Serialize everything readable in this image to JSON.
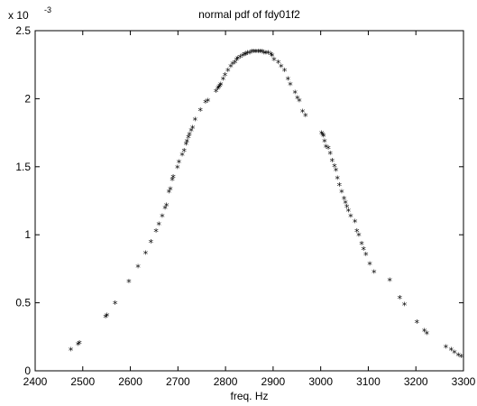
{
  "chart_data": {
    "type": "scatter",
    "title": "normal pdf of fdy01f2",
    "xlabel": "freq. Hz",
    "ylabel": "",
    "xlim": [
      2400,
      3300
    ],
    "ylim": [
      0,
      0.0025
    ],
    "x_ticks": [
      "2400",
      "2500",
      "2600",
      "2700",
      "2800",
      "2900",
      "3000",
      "3100",
      "3200",
      "3300"
    ],
    "y_ticks": [
      "0",
      "0.5",
      "1",
      "1.5",
      "2",
      "2.5"
    ],
    "y_exponent_base": "x 10",
    "y_exponent_power": "-3",
    "marker": "*",
    "grid": false,
    "series": [
      {
        "x": [
          2475,
          2490,
          2493,
          2548,
          2551,
          2568,
          2597,
          2616,
          2632,
          2643,
          2654,
          2660,
          2667,
          2673,
          2676,
          2681,
          2684,
          2688,
          2690,
          2699,
          2702,
          2709,
          2713,
          2717,
          2719,
          2722,
          2724,
          2728,
          2731,
          2736,
          2747,
          2758,
          2763,
          2780,
          2784,
          2786,
          2788,
          2790,
          2795,
          2799,
          2805,
          2811,
          2815,
          2820,
          2823,
          2826,
          2831,
          2836,
          2840,
          2843,
          2846,
          2851,
          2855,
          2860,
          2864,
          2869,
          2873,
          2877,
          2881,
          2885,
          2890,
          2895,
          2898,
          2902,
          2911,
          2917,
          2924,
          2931,
          2936,
          2946,
          2951,
          2955,
          2962,
          2968,
          3002,
          3004,
          3006,
          3008,
          3011,
          3016,
          3020,
          3024,
          3029,
          3032,
          3035,
          3039,
          3044,
          3049,
          3052,
          3055,
          3058,
          3063,
          3072,
          3076,
          3080,
          3086,
          3090,
          3095,
          3103,
          3112,
          3145,
          3166,
          3176,
          3202,
          3218,
          3223,
          3263,
          3274,
          3281,
          3289,
          3295
        ],
        "y": [
          0.00015,
          0.00019,
          0.0002,
          0.00039,
          0.0004,
          0.00049,
          0.00065,
          0.00076,
          0.00086,
          0.00094,
          0.00102,
          0.00107,
          0.00113,
          0.00119,
          0.00121,
          0.00131,
          0.00133,
          0.0014,
          0.00142,
          0.00149,
          0.00153,
          0.00158,
          0.00161,
          0.00166,
          0.00168,
          0.00171,
          0.00173,
          0.00176,
          0.00178,
          0.00184,
          0.00191,
          0.00197,
          0.00198,
          0.00205,
          0.00207,
          0.00208,
          0.00209,
          0.0021,
          0.00214,
          0.00217,
          0.0022,
          0.00223,
          0.00225,
          0.00226,
          0.00228,
          0.00229,
          0.0023,
          0.00231,
          0.00232,
          0.00232,
          0.00233,
          0.00233,
          0.00234,
          0.00234,
          0.00234,
          0.00234,
          0.00234,
          0.00234,
          0.00233,
          0.00233,
          0.00233,
          0.00232,
          0.00231,
          0.00228,
          0.00226,
          0.00223,
          0.0022,
          0.00214,
          0.0021,
          0.00204,
          0.002,
          0.00198,
          0.0019,
          0.00187,
          0.00174,
          0.00173,
          0.00172,
          0.00168,
          0.00164,
          0.00163,
          0.00159,
          0.00154,
          0.0015,
          0.00147,
          0.00141,
          0.00136,
          0.00131,
          0.00126,
          0.00123,
          0.0012,
          0.00117,
          0.00113,
          0.00109,
          0.00102,
          0.00099,
          0.00093,
          0.00089,
          0.00085,
          0.00078,
          0.00072,
          0.00066,
          0.00053,
          0.00048,
          0.00035,
          0.00029,
          0.00027,
          0.00017,
          0.00015,
          0.00013,
          0.00011,
          0.0001
        ]
      }
    ]
  }
}
